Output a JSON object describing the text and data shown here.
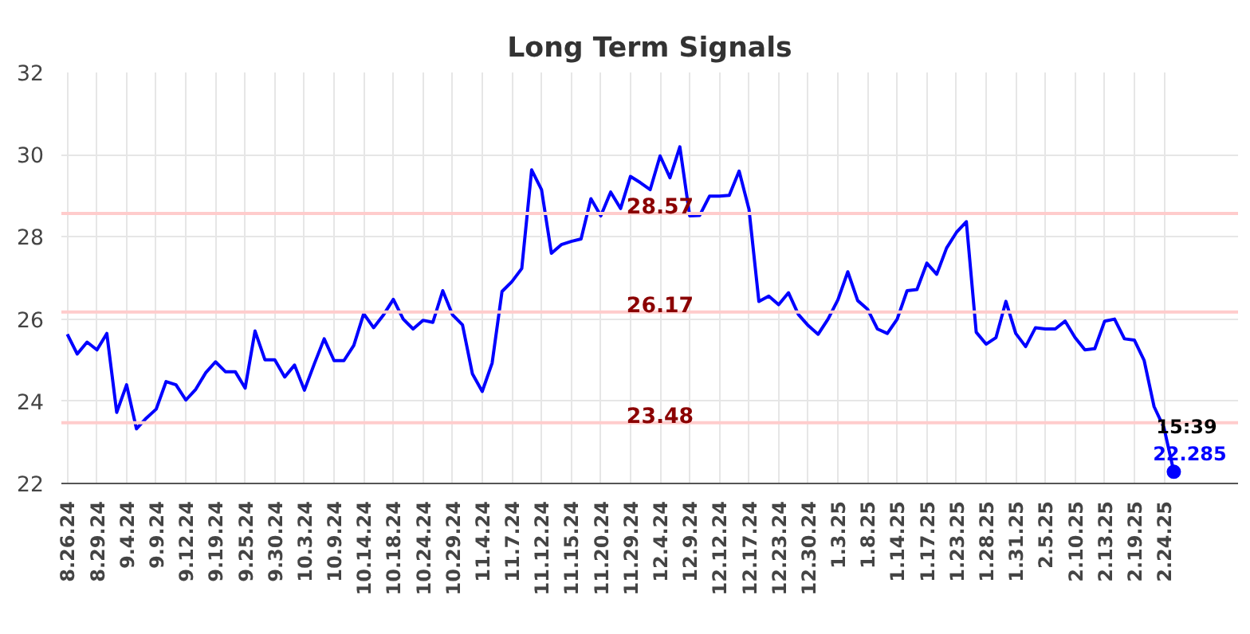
{
  "chart_data": {
    "type": "line",
    "title": "Long Term Signals",
    "categories": [
      "8.26.24",
      null,
      null,
      "8.29.24",
      null,
      null,
      "9.4.24",
      null,
      null,
      "9.9.24",
      null,
      null,
      "9.12.24",
      null,
      null,
      "9.19.24",
      null,
      null,
      "9.25.24",
      null,
      null,
      "9.30.24",
      null,
      null,
      "10.3.24",
      null,
      null,
      "10.9.24",
      null,
      null,
      "10.14.24",
      null,
      null,
      "10.18.24",
      null,
      null,
      "10.24.24",
      null,
      null,
      "10.29.24",
      null,
      null,
      "11.4.24",
      null,
      null,
      "11.7.24",
      null,
      null,
      "11.12.24",
      null,
      null,
      "11.15.24",
      null,
      null,
      "11.20.24",
      null,
      null,
      "11.29.24",
      null,
      null,
      "12.4.24",
      null,
      null,
      "12.9.24",
      null,
      null,
      "12.12.24",
      null,
      null,
      "12.17.24",
      null,
      null,
      "12.23.24",
      null,
      null,
      "12.30.24",
      null,
      null,
      "1.3.25",
      null,
      null,
      "1.8.25",
      null,
      null,
      "1.14.25",
      null,
      null,
      "1.17.25",
      null,
      null,
      "1.23.25",
      null,
      null,
      "1.28.25",
      null,
      null,
      "1.31.25",
      null,
      null,
      "2.5.25",
      null,
      null,
      "2.10.25",
      null,
      null,
      "2.13.25",
      null,
      null,
      "2.19.25",
      null,
      null,
      "2.24.25",
      null
    ],
    "series": [
      {
        "color": "#0000ff",
        "values": [
          25.63,
          25.15,
          25.44,
          25.25,
          25.65,
          23.73,
          24.4,
          23.33,
          23.59,
          23.81,
          24.48,
          24.4,
          24.03,
          24.29,
          24.69,
          24.96,
          24.72,
          24.72,
          24.32,
          25.71,
          25.01,
          25.01,
          24.59,
          24.88,
          24.27,
          24.91,
          25.52,
          24.99,
          24.99,
          25.36,
          26.13,
          25.79,
          26.1,
          26.48,
          26.0,
          25.76,
          25.97,
          25.92,
          26.69,
          26.1,
          25.86,
          24.67,
          24.24,
          24.93,
          26.67,
          26.91,
          27.23,
          29.63,
          29.15,
          27.6,
          27.81,
          27.89,
          27.95,
          28.93,
          28.51,
          29.09,
          28.69,
          29.47,
          29.32,
          29.15,
          29.97,
          29.44,
          30.19,
          28.51,
          28.52,
          28.99,
          28.99,
          29.01,
          29.6,
          28.67,
          26.43,
          26.56,
          26.35,
          26.64,
          26.11,
          25.84,
          25.63,
          26.0,
          26.47,
          27.15,
          26.45,
          26.24,
          25.76,
          25.65,
          26.0,
          26.69,
          26.72,
          27.36,
          27.09,
          27.73,
          28.11,
          28.37,
          25.68,
          25.39,
          25.55,
          26.43,
          25.65,
          25.33,
          25.79,
          25.76,
          25.76,
          25.95,
          25.55,
          25.25,
          25.28,
          25.95,
          26.0,
          25.52,
          25.49,
          24.99,
          23.87,
          23.36,
          22.285
        ],
        "value_labels": [
          null,
          null,
          null,
          null,
          null,
          null,
          null,
          null,
          null,
          null,
          null,
          null,
          null,
          null,
          null,
          null,
          null,
          null,
          null,
          null,
          null,
          null,
          null,
          null,
          null,
          null,
          null,
          null,
          null,
          null,
          null,
          null,
          null,
          null,
          null,
          null,
          null,
          null,
          null,
          null,
          null,
          null,
          null,
          null,
          null,
          null,
          null,
          null,
          null,
          null,
          null,
          null,
          null,
          null,
          null,
          null,
          null,
          null,
          null,
          null,
          null,
          null,
          null,
          null,
          null,
          null,
          null,
          null,
          null,
          null,
          null,
          null,
          null,
          null,
          null,
          null,
          null,
          null,
          null,
          null,
          null,
          null,
          null,
          null,
          null,
          null,
          null,
          null,
          null,
          null,
          null,
          null,
          null,
          null,
          null,
          null,
          null,
          null,
          null,
          null,
          null,
          null,
          null,
          null,
          null,
          null,
          null,
          null,
          null,
          null,
          null,
          null,
          "22.285"
        ]
      }
    ],
    "annotations": [
      "15:39"
    ],
    "ylim": [
      22,
      32
    ],
    "yticks": [
      22,
      24,
      26,
      28,
      30,
      32
    ],
    "grid": true,
    "marker": "none",
    "line_style": "solid",
    "ref_lines": [
      {
        "axis": "y",
        "value": 28.57,
        "label": "28.57",
        "color": "#ffcccc"
      },
      {
        "axis": "y",
        "value": 26.17,
        "label": "26.17",
        "color": "#ffcccc"
      },
      {
        "axis": "y",
        "value": 23.48,
        "label": "23.48",
        "color": "#ffcccc"
      }
    ]
  }
}
